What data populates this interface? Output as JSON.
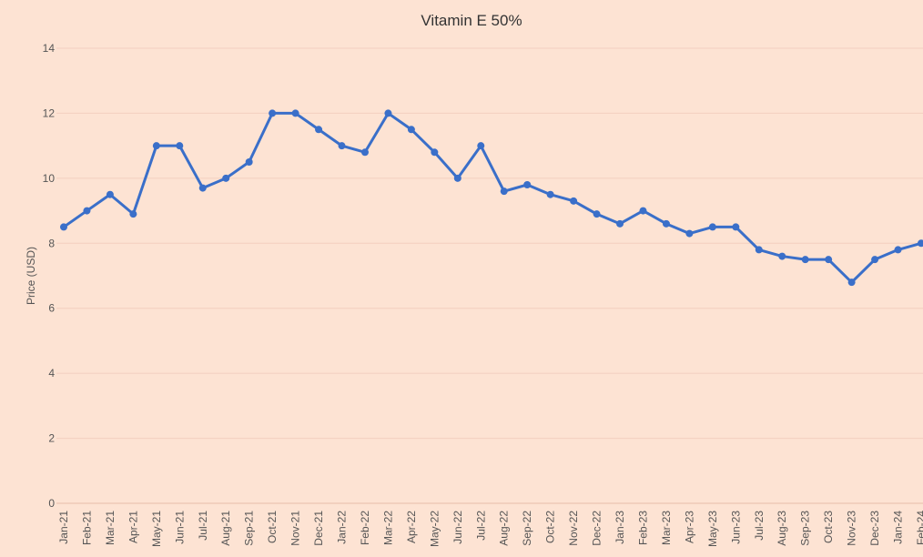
{
  "chart_data": {
    "type": "line",
    "title": "Vitamin E 50%",
    "y_label": "Price (USD)",
    "categories": [
      "Jan-21",
      "Feb-21",
      "Mar-21",
      "Apr-21",
      "May-21",
      "Jun-21",
      "Jul-21",
      "Aug-21",
      "Sep-21",
      "Oct-21",
      "Nov-21",
      "Dec-21",
      "Jan-22",
      "Feb-22",
      "Mar-22",
      "Apr-22",
      "May-22",
      "Jun-22",
      "Jul-22",
      "Aug-22",
      "Sep-22",
      "Oct-22",
      "Nov-22",
      "Dec-22",
      "Jan-23",
      "Feb-23",
      "Mar-23",
      "Apr-23",
      "May-23",
      "Jun-23",
      "Jul-23",
      "Aug-23",
      "Sep-23",
      "Oct-23",
      "Nov-23",
      "Dec-23",
      "Jan-24",
      "Feb-24"
    ],
    "series": [
      {
        "name": "Vitamin E 50%",
        "color": "#3a6fc9",
        "values": [
          8.5,
          9.0,
          9.5,
          8.9,
          11.0,
          11.0,
          9.7,
          10.0,
          10.5,
          12.0,
          12.0,
          11.5,
          11.0,
          10.8,
          12.0,
          11.5,
          10.8,
          10.0,
          11.0,
          9.6,
          9.8,
          9.5,
          9.3,
          8.9,
          8.6,
          9.0,
          8.6,
          8.3,
          8.5,
          8.5,
          7.8,
          7.6,
          7.5,
          7.5,
          6.8,
          7.5,
          7.8,
          8.0
        ]
      }
    ],
    "ylim": [
      0,
      14
    ],
    "yticks": [
      0,
      2,
      4,
      6,
      8,
      10,
      12,
      14
    ],
    "grid": true
  }
}
